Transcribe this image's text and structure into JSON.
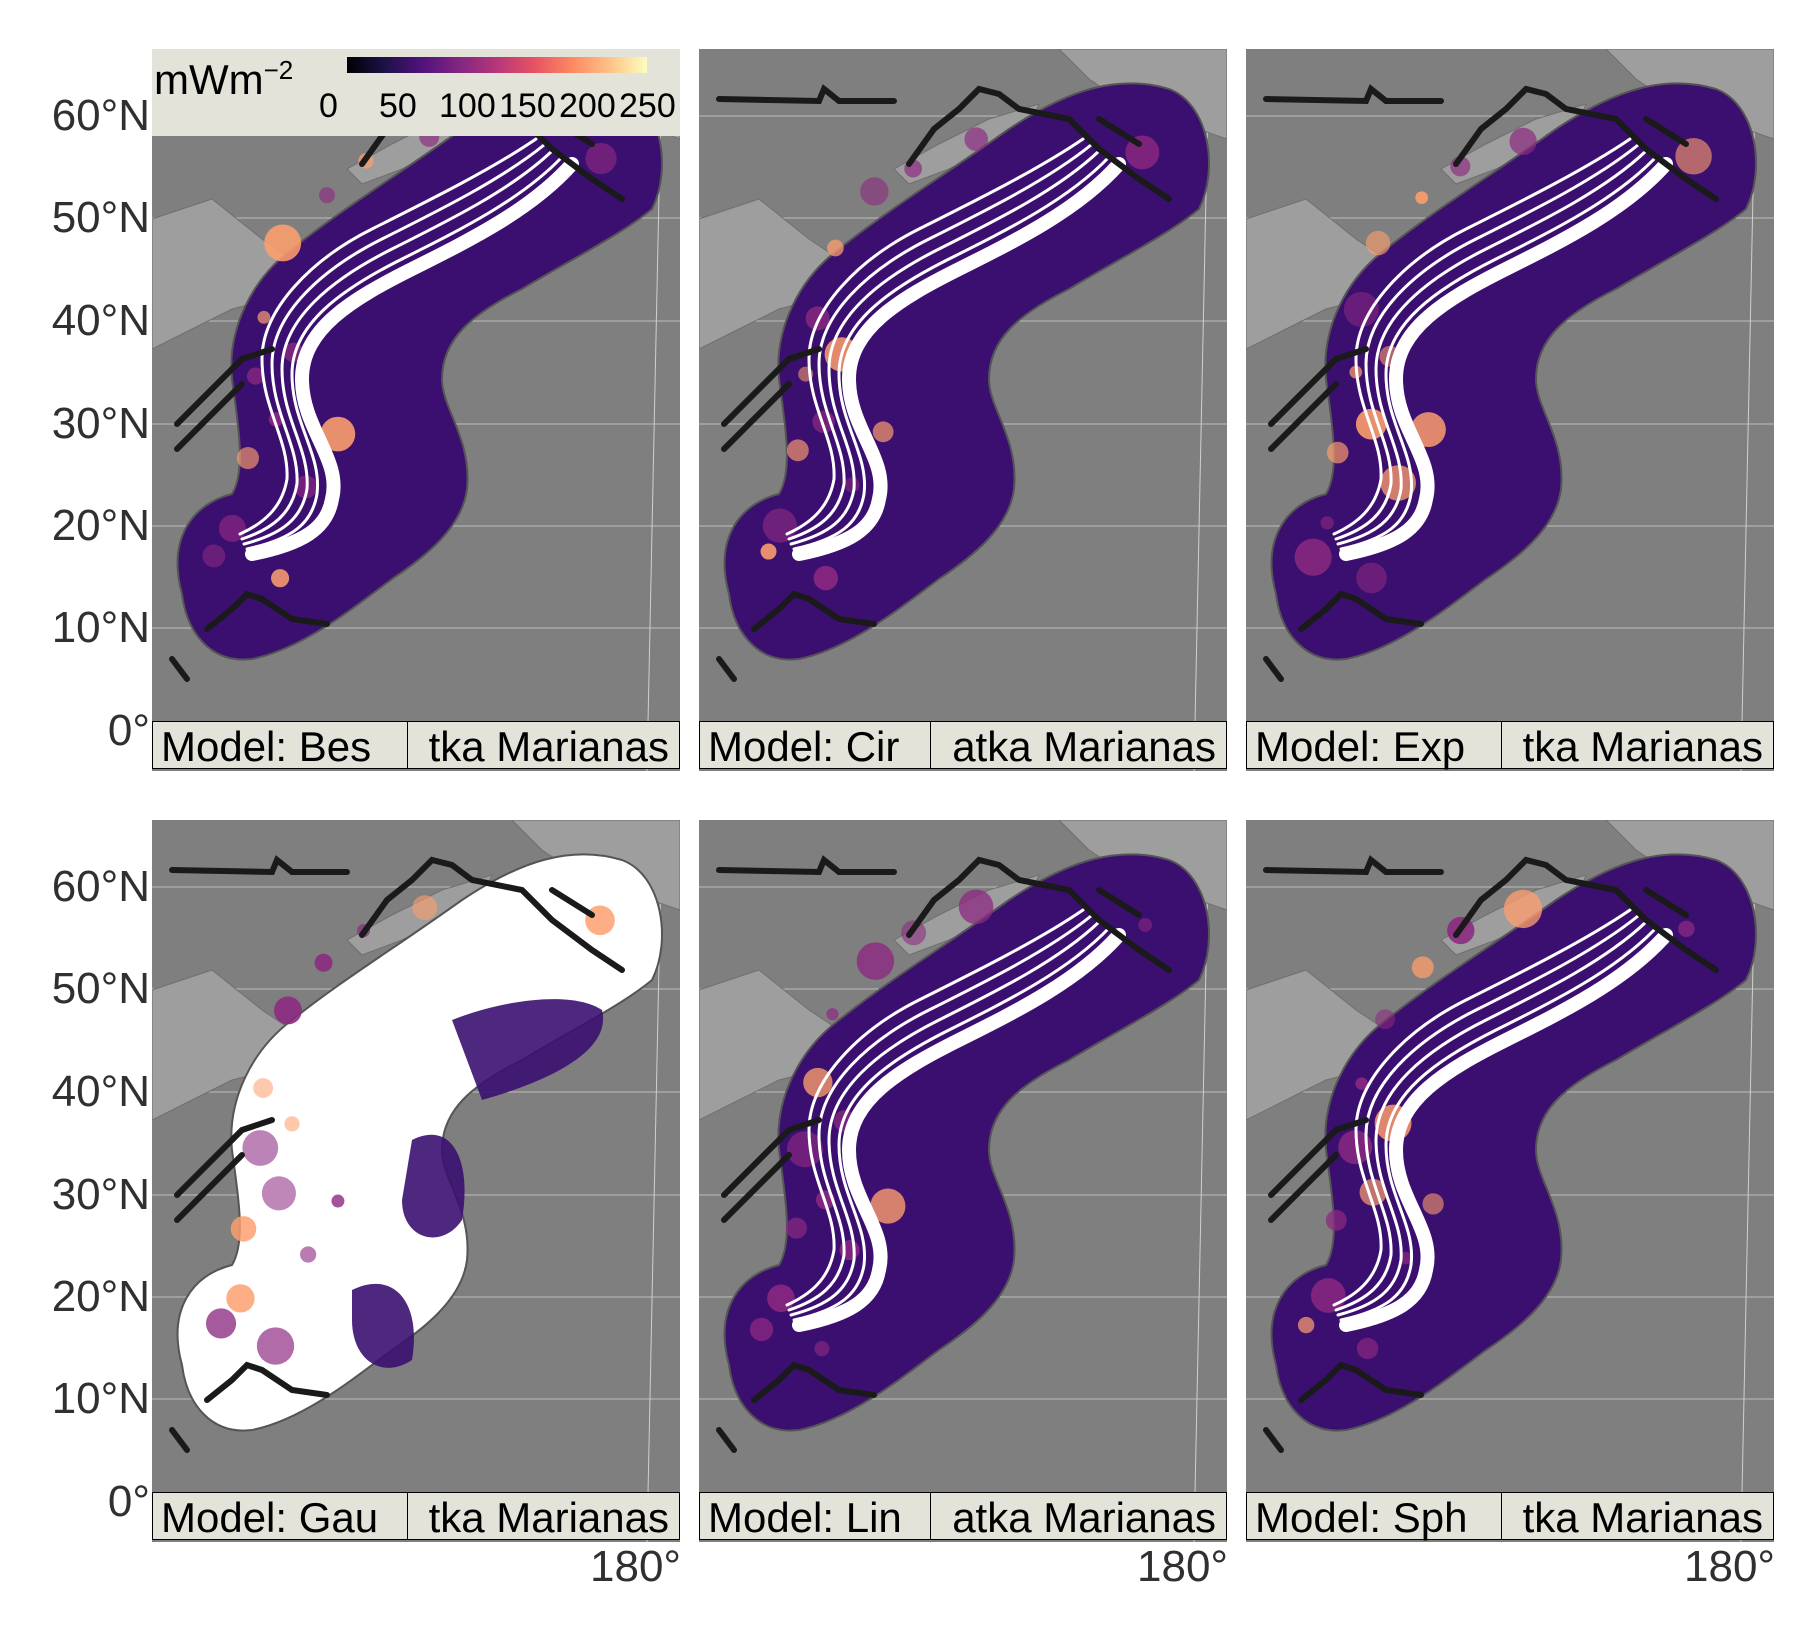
{
  "legend": {
    "unit_label": "mWm",
    "unit_exponent": "−2",
    "ticks": [
      "0",
      "50",
      "100",
      "150",
      "200",
      "250"
    ],
    "colormap": "magma"
  },
  "y_axis": {
    "labels": [
      "60°N",
      "50°N",
      "40°N",
      "30°N",
      "20°N",
      "10°N",
      "0°"
    ]
  },
  "x_axis": {
    "labels": [
      "180°",
      "180°",
      "180°"
    ]
  },
  "panels": [
    {
      "model_label": "Model: Bes",
      "region_label": "tka Marianas",
      "style": "full"
    },
    {
      "model_label": "Model: Cir",
      "region_label": "atka Marianas",
      "style": "smooth"
    },
    {
      "model_label": "Model: Exp",
      "region_label": "tka Marianas",
      "style": "smooth"
    },
    {
      "model_label": "Model: Gau",
      "region_label": "tka Marianas",
      "style": "gaps"
    },
    {
      "model_label": "Model: Lin",
      "region_label": "atka Marianas",
      "style": "smooth"
    },
    {
      "model_label": "Model: Sph",
      "region_label": "tka Marianas",
      "style": "smooth"
    }
  ],
  "colors": {
    "ocean": "#7f7f7f",
    "land": "#9e9e9e",
    "heat_low": "#3b0f70",
    "heat_mid": "#8c2981",
    "heat_high": "#fe9f6d",
    "segments": "#ffffff",
    "boundaries": "#1a1a1a"
  }
}
